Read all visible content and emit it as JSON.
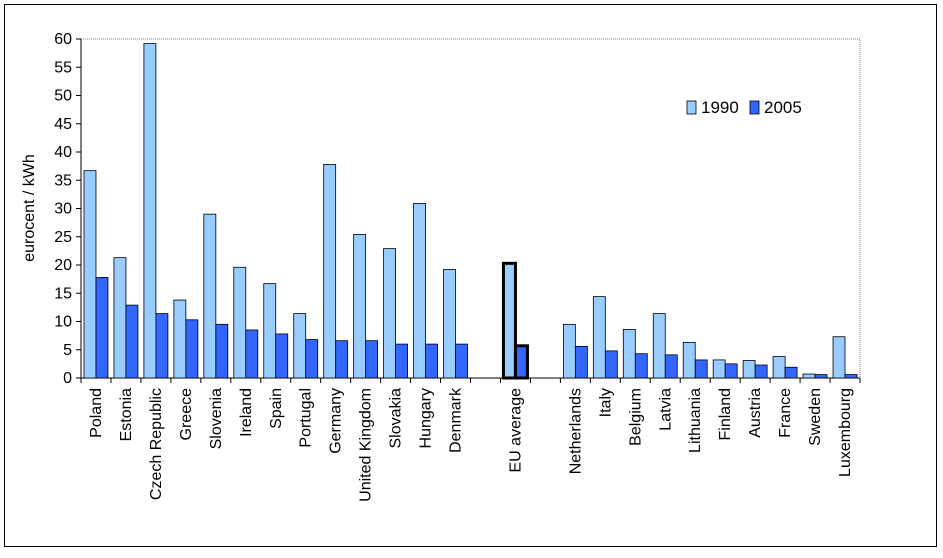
{
  "chart_data": {
    "type": "bar",
    "title": "",
    "ylabel": "eurocent / kWh",
    "xlabel": "",
    "ylim": [
      0,
      60
    ],
    "yticks": [
      0,
      5,
      10,
      15,
      20,
      25,
      30,
      35,
      40,
      45,
      50,
      55,
      60
    ],
    "grid": false,
    "legend_position": "top-right",
    "categories": [
      "Poland",
      "Estonia",
      "Czech Republic",
      "Greece",
      "Slovenia",
      "Ireland",
      "Spain",
      "Portugal",
      "Germany",
      "United Kingdom",
      "Slovakia",
      "Hungary",
      "Denmark",
      "",
      "EU average",
      "",
      "Netherlands",
      "Italy",
      "Belgium",
      "Latvia",
      "Lithuania",
      "Finland",
      "Austria",
      "France",
      "Sweden",
      "Luxembourg"
    ],
    "highlight_category": "EU average",
    "series": [
      {
        "name": "1990",
        "color": "#99ccff",
        "values": [
          36.7,
          21.3,
          59.2,
          13.8,
          29.0,
          19.6,
          16.7,
          11.4,
          37.8,
          25.4,
          22.9,
          30.9,
          19.2,
          null,
          20.3,
          null,
          9.5,
          14.4,
          8.6,
          11.4,
          6.3,
          3.2,
          3.1,
          3.8,
          0.7,
          7.3
        ]
      },
      {
        "name": "2005",
        "color": "#3366ff",
        "values": [
          17.8,
          12.9,
          11.4,
          10.3,
          9.5,
          8.5,
          7.8,
          6.8,
          6.6,
          6.6,
          6.0,
          6.0,
          6.0,
          null,
          5.7,
          null,
          5.6,
          4.8,
          4.3,
          4.1,
          3.2,
          2.5,
          2.3,
          1.9,
          0.6,
          0.6
        ]
      }
    ]
  }
}
